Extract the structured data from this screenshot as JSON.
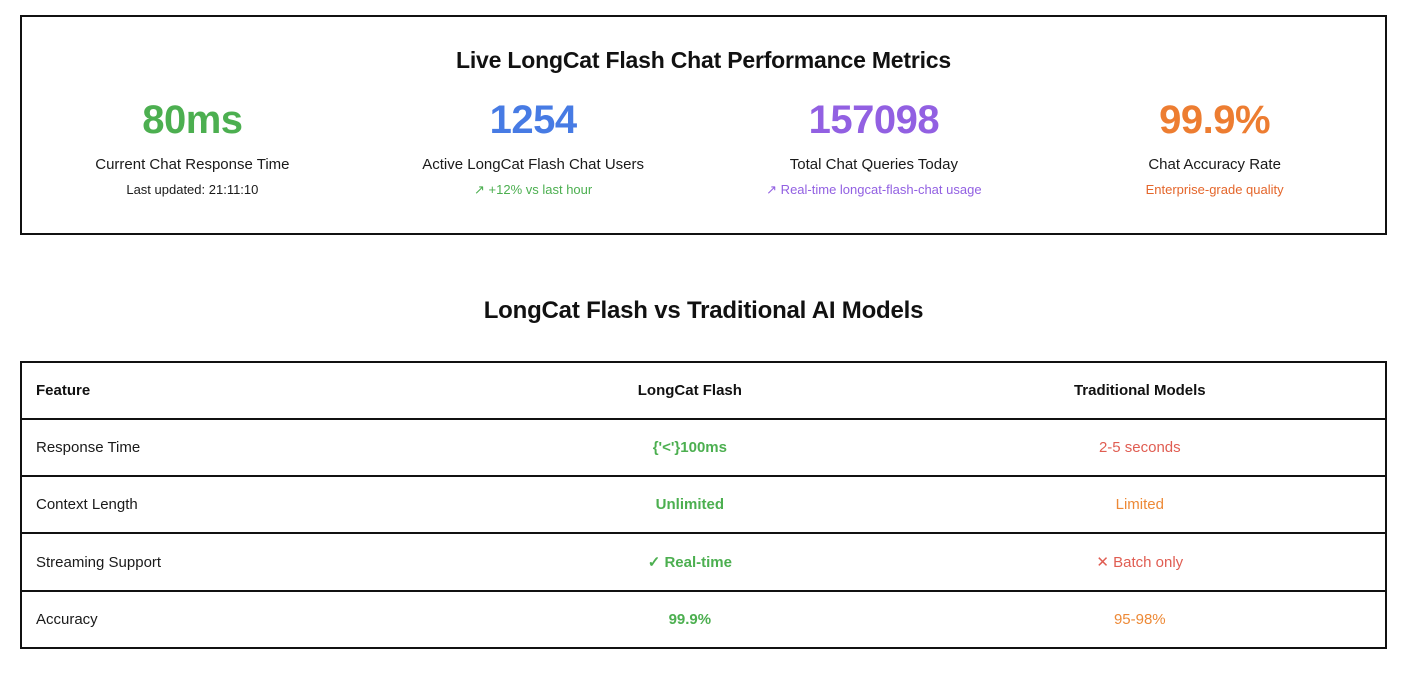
{
  "metrics_panel": {
    "title": "Live LongCat Flash Chat Performance Metrics",
    "metrics": [
      {
        "value": "80ms",
        "label": "Current Chat Response Time",
        "sub": "Last updated: 21:11:10",
        "value_color": "#4caf50",
        "sub_color": "#1a1a1a"
      },
      {
        "value": "1254",
        "label": "Active LongCat Flash Chat Users",
        "sub": "↗ +12% vs last hour",
        "value_color": "#477be4",
        "sub_color": "#4caf50"
      },
      {
        "value": "157098",
        "label": "Total Chat Queries Today",
        "sub": "↗ Real-time longcat-flash-chat usage",
        "value_color": "#9260e2",
        "sub_color": "#9260e2"
      },
      {
        "value": "99.9%",
        "label": "Chat Accuracy Rate",
        "sub": "Enterprise-grade quality",
        "value_color": "#ed7d31",
        "sub_color": "#e4662b"
      }
    ]
  },
  "comparison": {
    "title": "LongCat Flash vs Traditional AI Models",
    "columns": [
      "Feature",
      "LongCat Flash",
      "Traditional Models"
    ],
    "rows": [
      {
        "feature": "Response Time",
        "longcat": "{'<'}100ms",
        "longcat_color": "#4caf50",
        "traditional": "2-5 seconds",
        "traditional_color": "#e05d52"
      },
      {
        "feature": "Context Length",
        "longcat": "Unlimited",
        "longcat_color": "#4caf50",
        "traditional": "Limited",
        "traditional_color": "#ed8936"
      },
      {
        "feature": "Streaming Support",
        "longcat": "✓ Real-time",
        "longcat_color": "#4caf50",
        "traditional": "✕ Batch only",
        "traditional_color": "#e05d52"
      },
      {
        "feature": "Accuracy",
        "longcat": "99.9%",
        "longcat_color": "#4caf50",
        "traditional": "95-98%",
        "traditional_color": "#ed8936"
      }
    ]
  }
}
